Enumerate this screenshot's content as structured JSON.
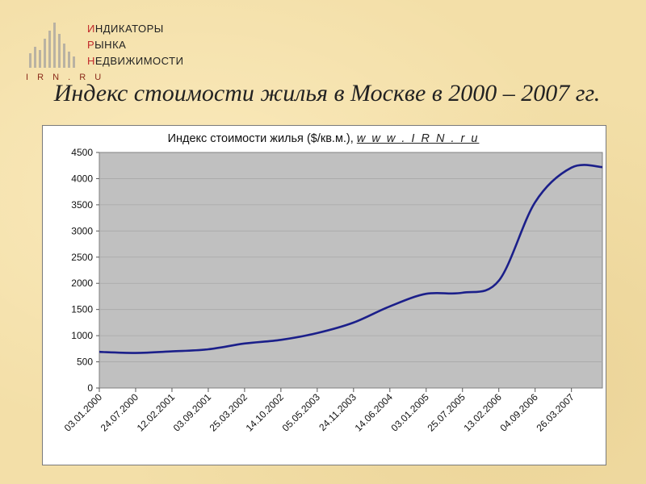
{
  "logo": {
    "lines": [
      {
        "first": "И",
        "rest": "НДИКАТОРЫ"
      },
      {
        "first": "Р",
        "rest": "ЫНКА"
      },
      {
        "first": "Н",
        "rest": "ЕДВИЖИМОСТИ"
      }
    ],
    "abbr": "I R N . R U"
  },
  "slide_title": "Индекс стоимости жилья в Москве в 2000 – 2007 гг.",
  "colors": {
    "background": "#f3dfa8",
    "plot_area": "#c0c0c0",
    "line": "#1b1f8a"
  },
  "chart_data": {
    "type": "line",
    "title": "Индекс стоимости жилья ($/кв.м.),",
    "title_link": "w w w . I R N . r u",
    "xlabel": "",
    "ylabel": "",
    "ylim": [
      0,
      4500
    ],
    "yticks": [
      0,
      500,
      1000,
      1500,
      2000,
      2500,
      3000,
      3500,
      4000,
      4500
    ],
    "grid": "horizontal",
    "legend": "none",
    "x_tick_labels": [
      "03.01.2000",
      "24.07.2000",
      "12.02.2001",
      "03.09.2001",
      "25.03.2002",
      "14.10.2002",
      "05.05.2003",
      "24.11.2003",
      "14.06.2004",
      "03.01.2005",
      "25.07.2005",
      "13.02.2006",
      "04.09.2006",
      "26.03.2007"
    ],
    "series": [
      {
        "name": "",
        "x": [
          "03.01.2000",
          "24.07.2000",
          "12.02.2001",
          "03.09.2001",
          "25.03.2002",
          "14.10.2002",
          "05.05.2003",
          "24.11.2003",
          "14.06.2004",
          "03.01.2005",
          "25.07.2005",
          "13.02.2006",
          "04.09.2006",
          "26.03.2007",
          "09.2007"
        ],
        "values": [
          690,
          670,
          700,
          740,
          850,
          920,
          1050,
          1250,
          1560,
          1800,
          1820,
          2050,
          3550,
          4210,
          4220
        ]
      }
    ]
  }
}
